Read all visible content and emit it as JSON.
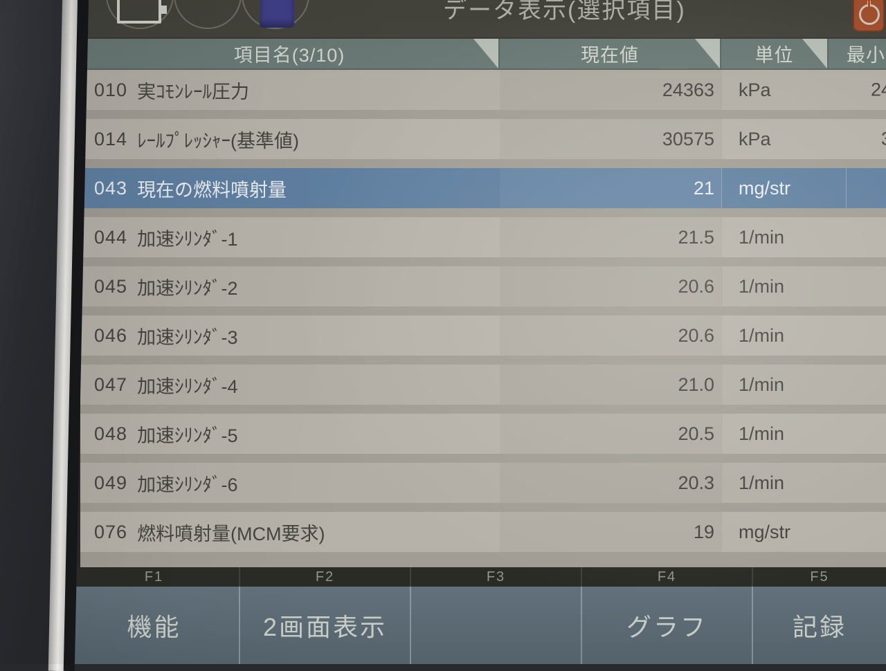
{
  "title": "データ表示(選択項目)",
  "topbar": {
    "buttons": [
      {
        "name": "card-button",
        "icon": "card-outline-icon"
      },
      {
        "name": "middle-round-button",
        "icon": "none"
      },
      {
        "name": "app-button",
        "icon": "blue-square-icon"
      }
    ],
    "power_icon": "power-icon"
  },
  "table": {
    "columns": [
      {
        "label": "項目名(3/10)"
      },
      {
        "label": "現在値"
      },
      {
        "label": "単位"
      },
      {
        "label": "最小"
      }
    ],
    "rows": [
      {
        "id": "010",
        "name": "実ｺﾓﾝﾚｰﾙ圧力",
        "value": "24363",
        "unit": "kPa",
        "min": "24",
        "selected": false
      },
      {
        "id": "014",
        "name": "ﾚｰﾙﾌﾟﾚｯｼｬｰ(基準値)",
        "value": "30575",
        "unit": "kPa",
        "min": "3",
        "selected": false
      },
      {
        "id": "043",
        "name": "現在の燃料噴射量",
        "value": "21",
        "unit": "mg/str",
        "min": "",
        "selected": true
      },
      {
        "id": "044",
        "name": "加速ｼﾘﾝﾀﾞ-1",
        "value": "21.5",
        "unit": "1/min",
        "min": "",
        "selected": false
      },
      {
        "id": "045",
        "name": "加速ｼﾘﾝﾀﾞ-2",
        "value": "20.6",
        "unit": "1/min",
        "min": "",
        "selected": false
      },
      {
        "id": "046",
        "name": "加速ｼﾘﾝﾀﾞ-3",
        "value": "20.6",
        "unit": "1/min",
        "min": "",
        "selected": false
      },
      {
        "id": "047",
        "name": "加速ｼﾘﾝﾀﾞ-4",
        "value": "21.0",
        "unit": "1/min",
        "min": "",
        "selected": false
      },
      {
        "id": "048",
        "name": "加速ｼﾘﾝﾀﾞ-5",
        "value": "20.5",
        "unit": "1/min",
        "min": "",
        "selected": false
      },
      {
        "id": "049",
        "name": "加速ｼﾘﾝﾀﾞ-6",
        "value": "20.3",
        "unit": "1/min",
        "min": "",
        "selected": false
      },
      {
        "id": "076",
        "name": "燃料噴射量(MCM要求)",
        "value": "19",
        "unit": "mg/str",
        "min": "",
        "selected": false
      }
    ]
  },
  "function_keys": [
    {
      "key": "F1",
      "label": "機能"
    },
    {
      "key": "F2",
      "label": "2画面表示"
    },
    {
      "key": "F3",
      "label": ""
    },
    {
      "key": "F4",
      "label": "グラフ"
    },
    {
      "key": "F5",
      "label": "記録"
    }
  ],
  "colors": {
    "selected_row": "#5f7fa0",
    "header_bg": "#6b7a76",
    "row_bg": "#b2aea5",
    "gap_bg": "#a19d94",
    "topbar_bg": "#45453d",
    "fkey_body": "#62717b",
    "power_icon": "#a5522f"
  }
}
